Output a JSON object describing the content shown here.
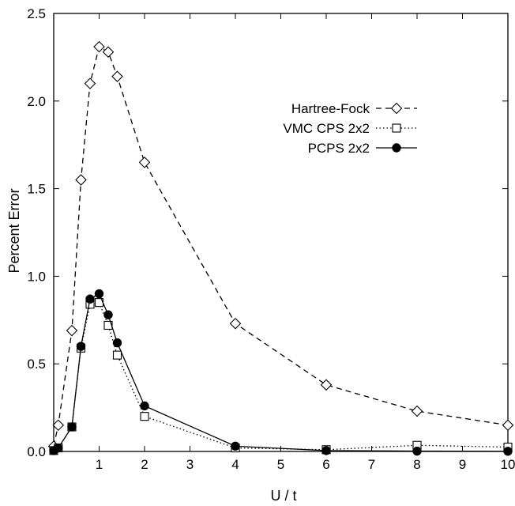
{
  "chart_data": {
    "type": "line",
    "title": "",
    "xlabel": "U / t",
    "ylabel": "Percent Error",
    "xlim": [
      0,
      10
    ],
    "ylim": [
      0,
      2.5
    ],
    "xticks": [
      1,
      2,
      3,
      4,
      5,
      6,
      7,
      8,
      9,
      10
    ],
    "yticks": [
      0.0,
      0.5,
      1.0,
      1.5,
      2.0,
      2.5
    ],
    "xtick_labels": [
      "1",
      "2",
      "3",
      "4",
      "5",
      "6",
      "7",
      "8",
      "9",
      "10"
    ],
    "ytick_labels": [
      "0.0",
      "0.5",
      "1.0",
      "1.5",
      "2.0",
      "2.5"
    ],
    "grid": false,
    "legend_position": "upper-right",
    "series": [
      {
        "name": "Hartree-Fock",
        "line": "dashed",
        "marker": "diamond-open",
        "color": "#000000",
        "x": [
          0.0,
          0.1,
          0.4,
          0.6,
          0.8,
          1.0,
          1.2,
          1.4,
          2.0,
          4.0,
          6.0,
          8.0,
          10.0
        ],
        "y": [
          0.03,
          0.15,
          0.69,
          1.55,
          2.1,
          2.31,
          2.28,
          2.14,
          1.65,
          0.73,
          0.38,
          0.23,
          0.15
        ]
      },
      {
        "name": "VMC CPS 2x2",
        "line": "dotted",
        "marker": "square-open",
        "color": "#000000",
        "x": [
          0.0,
          0.1,
          0.4,
          0.6,
          0.8,
          1.0,
          1.2,
          1.4,
          2.0,
          4.0,
          6.0,
          8.0,
          10.0
        ],
        "y": [
          0.005,
          0.02,
          0.14,
          0.59,
          0.84,
          0.85,
          0.72,
          0.55,
          0.2,
          0.02,
          0.01,
          0.035,
          0.025
        ]
      },
      {
        "name": "PCPS 2x2",
        "line": "solid",
        "marker": "circle-filled",
        "color": "#000000",
        "x": [
          0.0,
          0.1,
          0.4,
          0.6,
          0.8,
          1.0,
          1.2,
          1.4,
          2.0,
          4.0,
          6.0,
          8.0,
          10.0
        ],
        "y": [
          0.005,
          0.02,
          0.14,
          0.6,
          0.87,
          0.9,
          0.78,
          0.62,
          0.26,
          0.03,
          0.005,
          0.002,
          0.001
        ]
      }
    ]
  }
}
